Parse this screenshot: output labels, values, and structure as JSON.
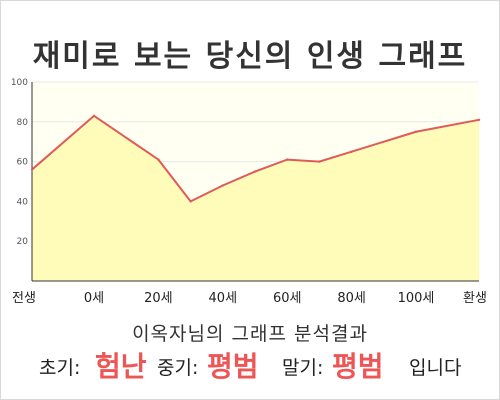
{
  "title": "재미로 보는 당신의 인생 그래프",
  "colors": {
    "line": "#e05a5a",
    "fill": "#fefcb8",
    "plot_bg": "#fffff2",
    "grid": "#e8e8e8",
    "axis": "#333333",
    "highlight": "#ee5555"
  },
  "chart_data": {
    "type": "area",
    "title": "재미로 보는 당신의 인생 그래프",
    "xlabel": "",
    "ylabel": "",
    "x_tick_labels": [
      "전생",
      "0세",
      "20세",
      "40세",
      "60세",
      "80세",
      "100세",
      "환생"
    ],
    "y_ticks": [
      20,
      40,
      60,
      80,
      100
    ],
    "ylim": [
      0,
      100
    ],
    "grid": true,
    "legend": "none",
    "series": [
      {
        "points": [
          {
            "x": "전생",
            "y": 56
          },
          {
            "x": "0세",
            "y": 83
          },
          {
            "x": "20세",
            "y": 61
          },
          {
            "x": "30세",
            "y": 40
          },
          {
            "x": "40세",
            "y": 48
          },
          {
            "x": "50세",
            "y": 55
          },
          {
            "x": "60세",
            "y": 61
          },
          {
            "x": "70세",
            "y": 60
          },
          {
            "x": "80세",
            "y": 65
          },
          {
            "x": "100세",
            "y": 75
          },
          {
            "x": "환생",
            "y": 81
          }
        ]
      }
    ]
  },
  "caption": "이옥자님의 그래프 분석결과",
  "result": {
    "early_label": "초기:",
    "early_value": "험난",
    "mid_label": "중기:",
    "mid_value": "평범",
    "late_label": "말기:",
    "late_value": "평범",
    "ending": "입니다"
  }
}
